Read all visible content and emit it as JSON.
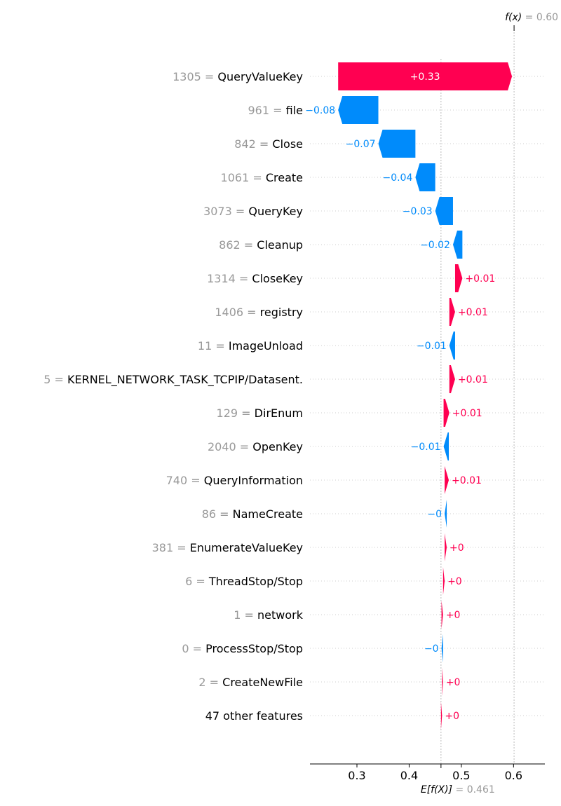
{
  "chart_data": {
    "type": "waterfall",
    "fx": {
      "label": "f(x)",
      "eq": " = ",
      "value": "0.60"
    },
    "efx": {
      "label": "E[f(X)]",
      "eq": " = ",
      "value": "0.461"
    },
    "base_value": 0.461,
    "output_value": 0.601,
    "xlim": [
      0.21,
      0.66
    ],
    "xticks": [
      {
        "value": 0.3,
        "label": "0.3"
      },
      {
        "value": 0.4,
        "label": "0.4"
      },
      {
        "value": 0.5,
        "label": "0.5"
      },
      {
        "value": 0.6,
        "label": "0.6"
      }
    ],
    "features": [
      {
        "value": "1305",
        "eq": " = ",
        "name": "QueryValueKey",
        "contribution": 0.333,
        "label": "+0.33"
      },
      {
        "value": "961",
        "eq": " = ",
        "name": "file",
        "contribution": -0.077,
        "label": "−0.08"
      },
      {
        "value": "842",
        "eq": " = ",
        "name": "Close",
        "contribution": -0.071,
        "label": "−0.07"
      },
      {
        "value": "1061",
        "eq": " = ",
        "name": "Create",
        "contribution": -0.038,
        "label": "−0.04"
      },
      {
        "value": "3073",
        "eq": " = ",
        "name": "QueryKey",
        "contribution": -0.034,
        "label": "−0.03"
      },
      {
        "value": "862",
        "eq": " = ",
        "name": "Cleanup",
        "contribution": -0.018,
        "label": "−0.02"
      },
      {
        "value": "1314",
        "eq": " = ",
        "name": "CloseKey",
        "contribution": 0.014,
        "label": "+0.01"
      },
      {
        "value": "1406",
        "eq": " = ",
        "name": "registry",
        "contribution": 0.011,
        "label": "+0.01"
      },
      {
        "value": "11",
        "eq": " = ",
        "name": "ImageUnload",
        "contribution": -0.011,
        "label": "−0.01"
      },
      {
        "value": "5",
        "eq": " = ",
        "name": "KERNEL_NETWORK_TASK_TCPIP/Datasent.",
        "contribution": 0.011,
        "label": "+0.01"
      },
      {
        "value": "129",
        "eq": " = ",
        "name": "DirEnum",
        "contribution": 0.011,
        "label": "+0.01"
      },
      {
        "value": "2040",
        "eq": " = ",
        "name": "OpenKey",
        "contribution": -0.01,
        "label": "−0.01"
      },
      {
        "value": "740",
        "eq": " = ",
        "name": "QueryInformation",
        "contribution": 0.008,
        "label": "+0.01"
      },
      {
        "value": "86",
        "eq": " = ",
        "name": "NameCreate",
        "contribution": -0.004,
        "label": "−0"
      },
      {
        "value": "381",
        "eq": " = ",
        "name": "EnumerateValueKey",
        "contribution": 0.004,
        "label": "+0"
      },
      {
        "value": "6",
        "eq": " = ",
        "name": "ThreadStop/Stop",
        "contribution": 0.003,
        "label": "+0"
      },
      {
        "value": "1",
        "eq": " = ",
        "name": "network",
        "contribution": 0.003,
        "label": "+0"
      },
      {
        "value": "0",
        "eq": " = ",
        "name": "ProcessStop/Stop",
        "contribution": -0.003,
        "label": "−0"
      },
      {
        "value": "2",
        "eq": " = ",
        "name": "CreateNewFile",
        "contribution": 0.002,
        "label": "+0"
      },
      {
        "value": "",
        "eq": "",
        "name": "47 other features",
        "contribution": 0.002,
        "label": "+0"
      }
    ],
    "colors": {
      "positive": "#ff0051",
      "negative": "#008bfb",
      "value_text": "#999999",
      "grid": "#cccccc"
    }
  }
}
